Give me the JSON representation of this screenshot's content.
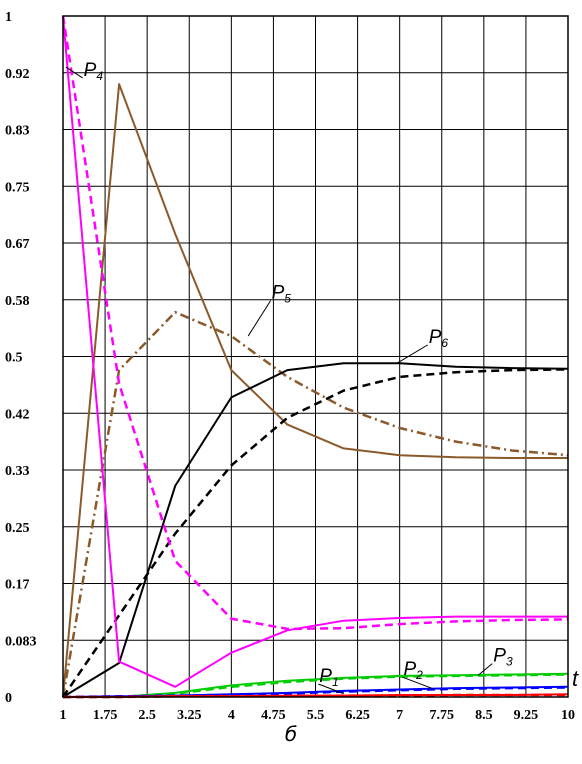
{
  "caption": "б",
  "chart_data": {
    "type": "line",
    "x_axis_label": "t",
    "x_ticks": [
      "1",
      "1.75",
      "2.5",
      "3.25",
      "4",
      "4.75",
      "5.5",
      "6.25",
      "7",
      "7.75",
      "8.5",
      "9.25",
      "10"
    ],
    "y_ticks": [
      "0",
      "0.083",
      "0.17",
      "0.25",
      "0.33",
      "0.42",
      "0.5",
      "0.58",
      "0.67",
      "0.75",
      "0.83",
      "0.92",
      "1"
    ],
    "xlim": [
      1,
      10
    ],
    "ylim": [
      0,
      1
    ],
    "grid": true,
    "curve_labels": [
      {
        "text": "P",
        "sub": "1",
        "x": 6.0,
        "y": 0.005,
        "lx": 5.55,
        "ly": 0.022
      },
      {
        "text": "P",
        "sub": "2",
        "x": 7.6,
        "y": 0.012,
        "lx": 7.05,
        "ly": 0.032
      },
      {
        "text": "P",
        "sub": "3",
        "x": 8.4,
        "y": 0.032,
        "lx": 8.65,
        "ly": 0.052
      },
      {
        "text": "P",
        "sub": "4",
        "x": 1.05,
        "y": 0.925,
        "lx": 1.35,
        "ly": 0.912
      },
      {
        "text": "P",
        "sub": "5",
        "x": 4.3,
        "y": 0.53,
        "lx": 4.7,
        "ly": 0.585
      },
      {
        "text": "P",
        "sub": "6",
        "x": 6.95,
        "y": 0.49,
        "lx": 7.5,
        "ly": 0.52
      }
    ],
    "series": [
      {
        "color": "#8B5A2B",
        "dash": "solid",
        "x": [
          1,
          2,
          3,
          4,
          5,
          6,
          7,
          8,
          9,
          10
        ],
        "y": [
          0,
          0.9,
          0.68,
          0.48,
          0.4,
          0.365,
          0.355,
          0.352,
          0.351,
          0.351
        ]
      },
      {
        "color": "#8B5A2B",
        "dash": "dashdot",
        "x": [
          1,
          2,
          3,
          4,
          5,
          6,
          7,
          8,
          9,
          10
        ],
        "y": [
          0,
          0.48,
          0.565,
          0.53,
          0.47,
          0.425,
          0.395,
          0.375,
          0.362,
          0.355
        ]
      },
      {
        "color": "#000000",
        "dash": "solid",
        "x": [
          1,
          2,
          3,
          4,
          5,
          6,
          7,
          8,
          9,
          10
        ],
        "y": [
          0,
          0.05,
          0.31,
          0.44,
          0.48,
          0.49,
          0.49,
          0.485,
          0.483,
          0.482
        ]
      },
      {
        "color": "#000000",
        "dash": "dash",
        "x": [
          1,
          2,
          3,
          4,
          5,
          6,
          7,
          8,
          9,
          10
        ],
        "y": [
          0,
          0.12,
          0.24,
          0.34,
          0.41,
          0.45,
          0.47,
          0.477,
          0.48,
          0.481
        ]
      },
      {
        "color": "#FF00FF",
        "dash": "solid",
        "x": [
          1,
          2,
          3,
          4,
          5,
          6,
          7,
          8,
          9,
          10
        ],
        "y": [
          1,
          0.052,
          0.015,
          0.065,
          0.098,
          0.112,
          0.116,
          0.118,
          0.118,
          0.118
        ]
      },
      {
        "color": "#FF00FF",
        "dash": "dash",
        "x": [
          1,
          2,
          3,
          4,
          5,
          6,
          7,
          8,
          9,
          10
        ],
        "y": [
          1,
          0.46,
          0.2,
          0.115,
          0.1,
          0.101,
          0.107,
          0.111,
          0.113,
          0.114
        ]
      },
      {
        "color": "#00CC00",
        "dash": "solid",
        "x": [
          1,
          2,
          3,
          4,
          5,
          6,
          7,
          8,
          9,
          10
        ],
        "y": [
          0,
          0,
          0.006,
          0.017,
          0.024,
          0.028,
          0.031,
          0.032,
          0.033,
          0.034
        ]
      },
      {
        "color": "#00CC00",
        "dash": "dash",
        "x": [
          1,
          2,
          3,
          4,
          5,
          6,
          7,
          8,
          9,
          10
        ],
        "y": [
          0,
          0,
          0.005,
          0.015,
          0.022,
          0.027,
          0.03,
          0.031,
          0.032,
          0.033
        ]
      },
      {
        "color": "#0000FF",
        "dash": "solid",
        "x": [
          1,
          2,
          3,
          4,
          5,
          6,
          7,
          8,
          9,
          10
        ],
        "y": [
          0,
          0.001,
          0.002,
          0.004,
          0.006,
          0.009,
          0.011,
          0.013,
          0.014,
          0.015
        ]
      },
      {
        "color": "#0000FF",
        "dash": "dash",
        "x": [
          1,
          2,
          3,
          4,
          5,
          6,
          7,
          8,
          9,
          10
        ],
        "y": [
          0,
          0.001,
          0.002,
          0.003,
          0.005,
          0.008,
          0.01,
          0.012,
          0.013,
          0.014
        ]
      },
      {
        "color": "#FF0000",
        "dash": "solid",
        "x": [
          1,
          2,
          3,
          4,
          5,
          6,
          7,
          8,
          9,
          10
        ],
        "y": [
          0,
          0,
          0.001,
          0.001,
          0.002,
          0.002,
          0.003,
          0.003,
          0.003,
          0.004
        ]
      },
      {
        "color": "#FF0000",
        "dash": "dash",
        "x": [
          1,
          2,
          3,
          4,
          5,
          6,
          7,
          8,
          9,
          10
        ],
        "y": [
          0,
          0,
          0.001,
          0.001,
          0.001,
          0.002,
          0.002,
          0.003,
          0.003,
          0.003
        ]
      }
    ]
  }
}
